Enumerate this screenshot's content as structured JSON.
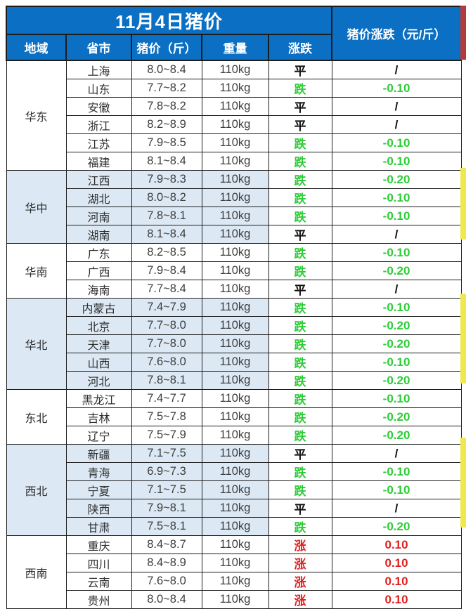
{
  "chart_data": {
    "type": "table",
    "title": "11月4日猪价",
    "change_header": "猪价涨跌（元/斤）",
    "columns": [
      "地域",
      "省市",
      "猪价（斤）",
      "重量",
      "涨跌"
    ],
    "regions": [
      {
        "name": "华东",
        "shaded": false,
        "rows": [
          {
            "province": "上海",
            "price": "8.0~8.4",
            "weight": "110kg",
            "trend": "平",
            "change": "/"
          },
          {
            "province": "山东",
            "price": "7.7~8.2",
            "weight": "110kg",
            "trend": "跌",
            "change": "-0.10"
          },
          {
            "province": "安徽",
            "price": "7.8~8.2",
            "weight": "110kg",
            "trend": "平",
            "change": "/"
          },
          {
            "province": "浙江",
            "price": "8.2~8.9",
            "weight": "110kg",
            "trend": "平",
            "change": "/"
          },
          {
            "province": "江苏",
            "price": "7.9~8.5",
            "weight": "110kg",
            "trend": "跌",
            "change": "-0.10"
          },
          {
            "province": "福建",
            "price": "8.1~8.4",
            "weight": "110kg",
            "trend": "跌",
            "change": "-0.10"
          }
        ]
      },
      {
        "name": "华中",
        "shaded": true,
        "rows": [
          {
            "province": "江西",
            "price": "7.9~8.3",
            "weight": "110kg",
            "trend": "跌",
            "change": "-0.20"
          },
          {
            "province": "湖北",
            "price": "8.0~8.2",
            "weight": "110kg",
            "trend": "跌",
            "change": "-0.10"
          },
          {
            "province": "河南",
            "price": "7.8~8.1",
            "weight": "110kg",
            "trend": "跌",
            "change": "-0.10"
          },
          {
            "province": "湖南",
            "price": "8.1~8.4",
            "weight": "110kg",
            "trend": "平",
            "change": "/"
          }
        ]
      },
      {
        "name": "华南",
        "shaded": false,
        "rows": [
          {
            "province": "广东",
            "price": "8.2~8.5",
            "weight": "110kg",
            "trend": "跌",
            "change": "-0.10"
          },
          {
            "province": "广西",
            "price": "7.9~8.4",
            "weight": "110kg",
            "trend": "跌",
            "change": "-0.20"
          },
          {
            "province": "海南",
            "price": "7.7~8.4",
            "weight": "110kg",
            "trend": "平",
            "change": "/"
          }
        ]
      },
      {
        "name": "华北",
        "shaded": true,
        "rows": [
          {
            "province": "内蒙古",
            "price": "7.4~7.9",
            "weight": "110kg",
            "trend": "跌",
            "change": "-0.10"
          },
          {
            "province": "北京",
            "price": "7.7~8.0",
            "weight": "110kg",
            "trend": "跌",
            "change": "-0.20"
          },
          {
            "province": "天津",
            "price": "7.7~8.0",
            "weight": "110kg",
            "trend": "跌",
            "change": "-0.20"
          },
          {
            "province": "山西",
            "price": "7.6~8.0",
            "weight": "110kg",
            "trend": "跌",
            "change": "-0.10"
          },
          {
            "province": "河北",
            "price": "7.8~8.1",
            "weight": "110kg",
            "trend": "跌",
            "change": "-0.20"
          }
        ]
      },
      {
        "name": "东北",
        "shaded": false,
        "rows": [
          {
            "province": "黑龙江",
            "price": "7.4~7.7",
            "weight": "110kg",
            "trend": "跌",
            "change": "-0.10"
          },
          {
            "province": "吉林",
            "price": "7.5~7.8",
            "weight": "110kg",
            "trend": "跌",
            "change": "-0.20"
          },
          {
            "province": "辽宁",
            "price": "7.5~7.9",
            "weight": "110kg",
            "trend": "跌",
            "change": "-0.20"
          }
        ]
      },
      {
        "name": "西北",
        "shaded": true,
        "rows": [
          {
            "province": "新疆",
            "price": "7.1~7.5",
            "weight": "110kg",
            "trend": "平",
            "change": "/"
          },
          {
            "province": "青海",
            "price": "6.9~7.3",
            "weight": "110kg",
            "trend": "跌",
            "change": "-0.10"
          },
          {
            "province": "宁夏",
            "price": "7.1~7.5",
            "weight": "110kg",
            "trend": "跌",
            "change": "-0.10"
          },
          {
            "province": "陕西",
            "price": "7.9~8.1",
            "weight": "110kg",
            "trend": "平",
            "change": "/"
          },
          {
            "province": "甘肃",
            "price": "7.5~8.1",
            "weight": "110kg",
            "trend": "跌",
            "change": "-0.20"
          }
        ]
      },
      {
        "name": "西南",
        "shaded": false,
        "rows": [
          {
            "province": "重庆",
            "price": "8.4~8.7",
            "weight": "110kg",
            "trend": "涨",
            "change": "0.10"
          },
          {
            "province": "四川",
            "price": "8.4~8.9",
            "weight": "110kg",
            "trend": "涨",
            "change": "0.10"
          },
          {
            "province": "云南",
            "price": "7.6~8.0",
            "weight": "110kg",
            "trend": "涨",
            "change": "0.10"
          },
          {
            "province": "贵州",
            "price": "8.0~8.4",
            "weight": "110kg",
            "trend": "涨",
            "change": "0.10"
          }
        ]
      }
    ]
  },
  "colors": {
    "header_blue": "#0b70c3",
    "shaded_row_blue": "#dce9f5",
    "down_green": "#2ecc38",
    "up_red": "#e02020",
    "flat_black": "#111111",
    "border_dark": "#1c1c1c",
    "edge_strip_red": "#b23b3b",
    "edge_strip_yellow": "#efe94f"
  },
  "trend_colors": {
    "平": "#111111",
    "跌": "#2ecc38",
    "涨": "#e02020"
  }
}
